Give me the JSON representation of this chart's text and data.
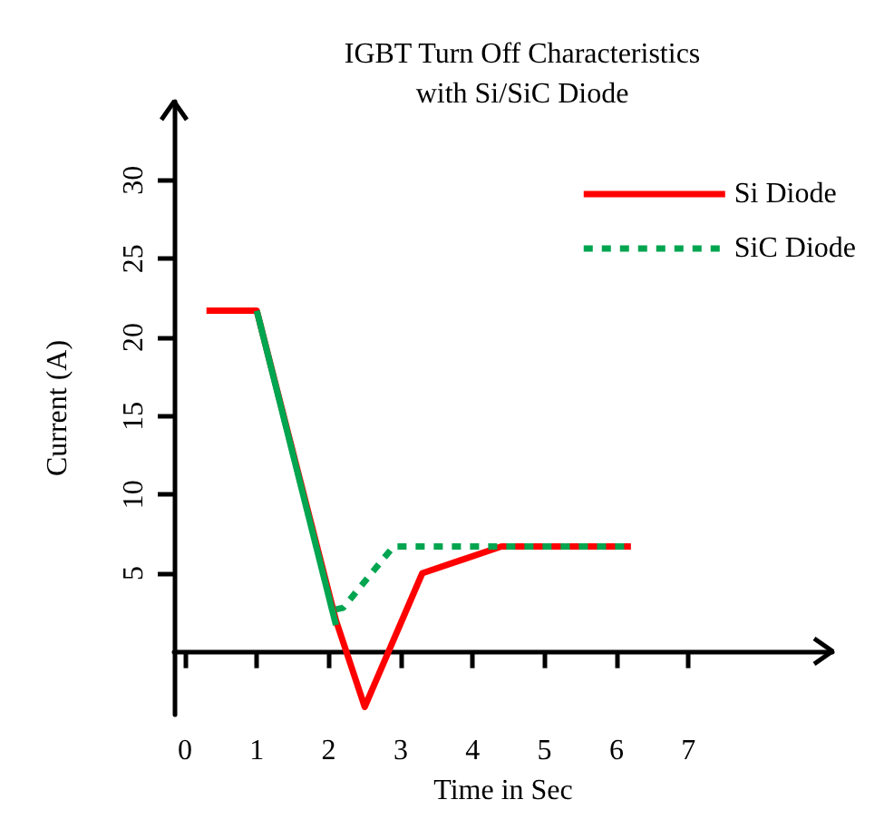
{
  "chart_data": {
    "type": "line",
    "title": "IGBT Turn Off Characteristics\nwith Si/SiC Diode",
    "xlabel": "Time in Sec",
    "ylabel": "Current (A)",
    "xlim": [
      -0.15,
      9
    ],
    "ylim": [
      -4,
      35
    ],
    "xticks": [
      0,
      1,
      2,
      3,
      4,
      5,
      6,
      7
    ],
    "yticks": [
      5,
      10,
      15,
      20,
      25,
      30
    ],
    "grid": false,
    "legend": "top right",
    "marker": "none",
    "series": [
      {
        "name": "Si Diode",
        "color": "#ff0000",
        "line_style": "solid",
        "x": [
          0.3,
          1,
          2.1,
          2.5,
          3.3,
          4.4,
          6.2
        ],
        "values": [
          21.7,
          21.7,
          2.0,
          -3.5,
          5,
          6.7,
          6.7
        ]
      },
      {
        "color": "#00a550",
        "line_style": "solid",
        "x": [
          1,
          2.1
        ],
        "values": [
          21.7,
          1.7
        ]
      },
      {
        "name": "SiC Diode",
        "color": "#00a550",
        "line_style": "dashed",
        "x": [
          2.1,
          2.2,
          2.9,
          6.2
        ],
        "values": [
          2.7,
          2.8,
          6.7,
          6.7
        ]
      }
    ]
  }
}
